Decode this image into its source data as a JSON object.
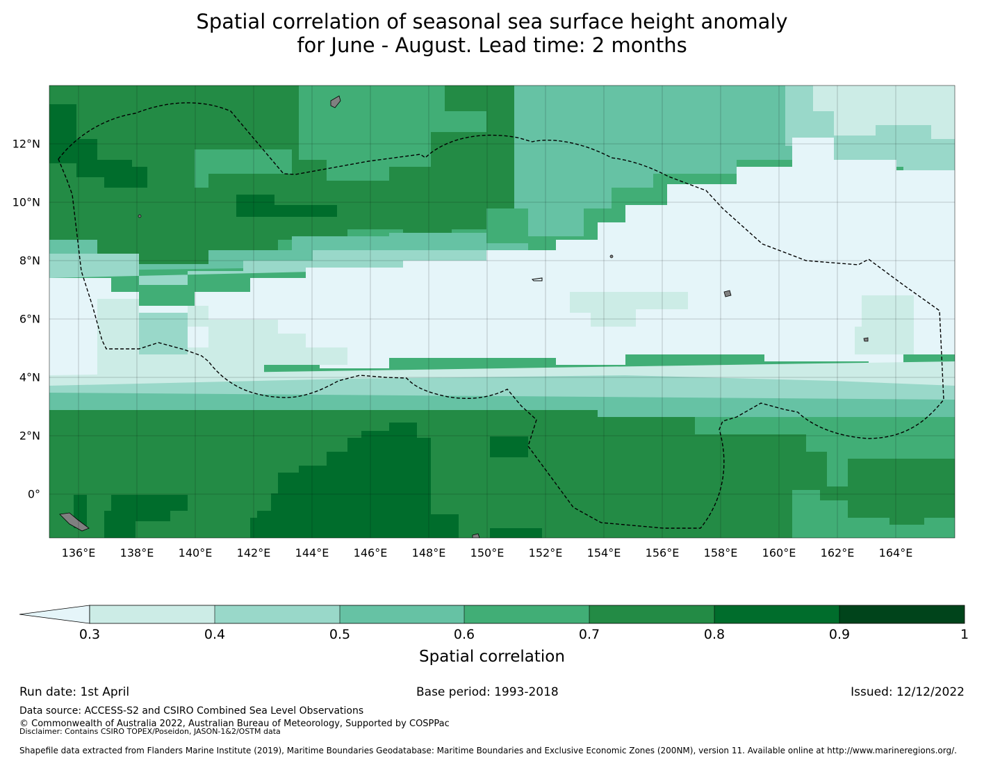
{
  "title": {
    "line1": "Spatial correlation of seasonal sea surface height anomaly",
    "line2": "for June - August. Lead time: 2 months"
  },
  "map": {
    "lon_range": [
      135,
      166
    ],
    "lat_range": [
      -1.5,
      14
    ],
    "x_ticks": [
      "136°E",
      "138°E",
      "140°E",
      "142°E",
      "144°E",
      "146°E",
      "148°E",
      "150°E",
      "152°E",
      "154°E",
      "156°E",
      "158°E",
      "160°E",
      "162°E",
      "164°E"
    ],
    "y_ticks": [
      "12°N",
      "10°N",
      "8°N",
      "6°N",
      "4°N",
      "2°N",
      "0°"
    ],
    "land_color": "#808080",
    "boundary_style": "dashed black"
  },
  "colorbar": {
    "label": "Spatial correlation",
    "bounds": [
      0.3,
      0.4,
      0.5,
      0.6,
      0.7,
      0.8,
      0.9,
      1.0
    ],
    "tick_labels": [
      "0.3",
      "0.4",
      "0.5",
      "0.6",
      "0.7",
      "0.8",
      "0.9",
      "1"
    ],
    "under_color": "#e5f5f9",
    "colors": [
      "#ccece6",
      "#99d8c9",
      "#66c2a4",
      "#41ae76",
      "#238b45",
      "#006d2c",
      "#00441b"
    ],
    "extend": "min"
  },
  "footer": {
    "run_date": "Run date: 1st April",
    "base_period": "Base period: 1993-2018",
    "issued": "Issued: 12/12/2022",
    "data_source": "Data source: ACCESS-S2 and CSIRO Combined Sea Level Observations",
    "copyright": "© Commonwealth of Australia 2022, Australian Bureau of Meteorology, Supported by COSPPac",
    "disclaimer": "Disclaimer: Contains CSIRO TOPEX/Poseidon, JASON-1&2/OSTM data",
    "shapefile": "Shapefile data extracted from Flanders Marine Institute (2019), Maritime Boundaries Geodatabase: Maritime Boundaries and Exclusive Economic Zones (200NM), version 11. Available online at http://www.marineregions.org/."
  }
}
